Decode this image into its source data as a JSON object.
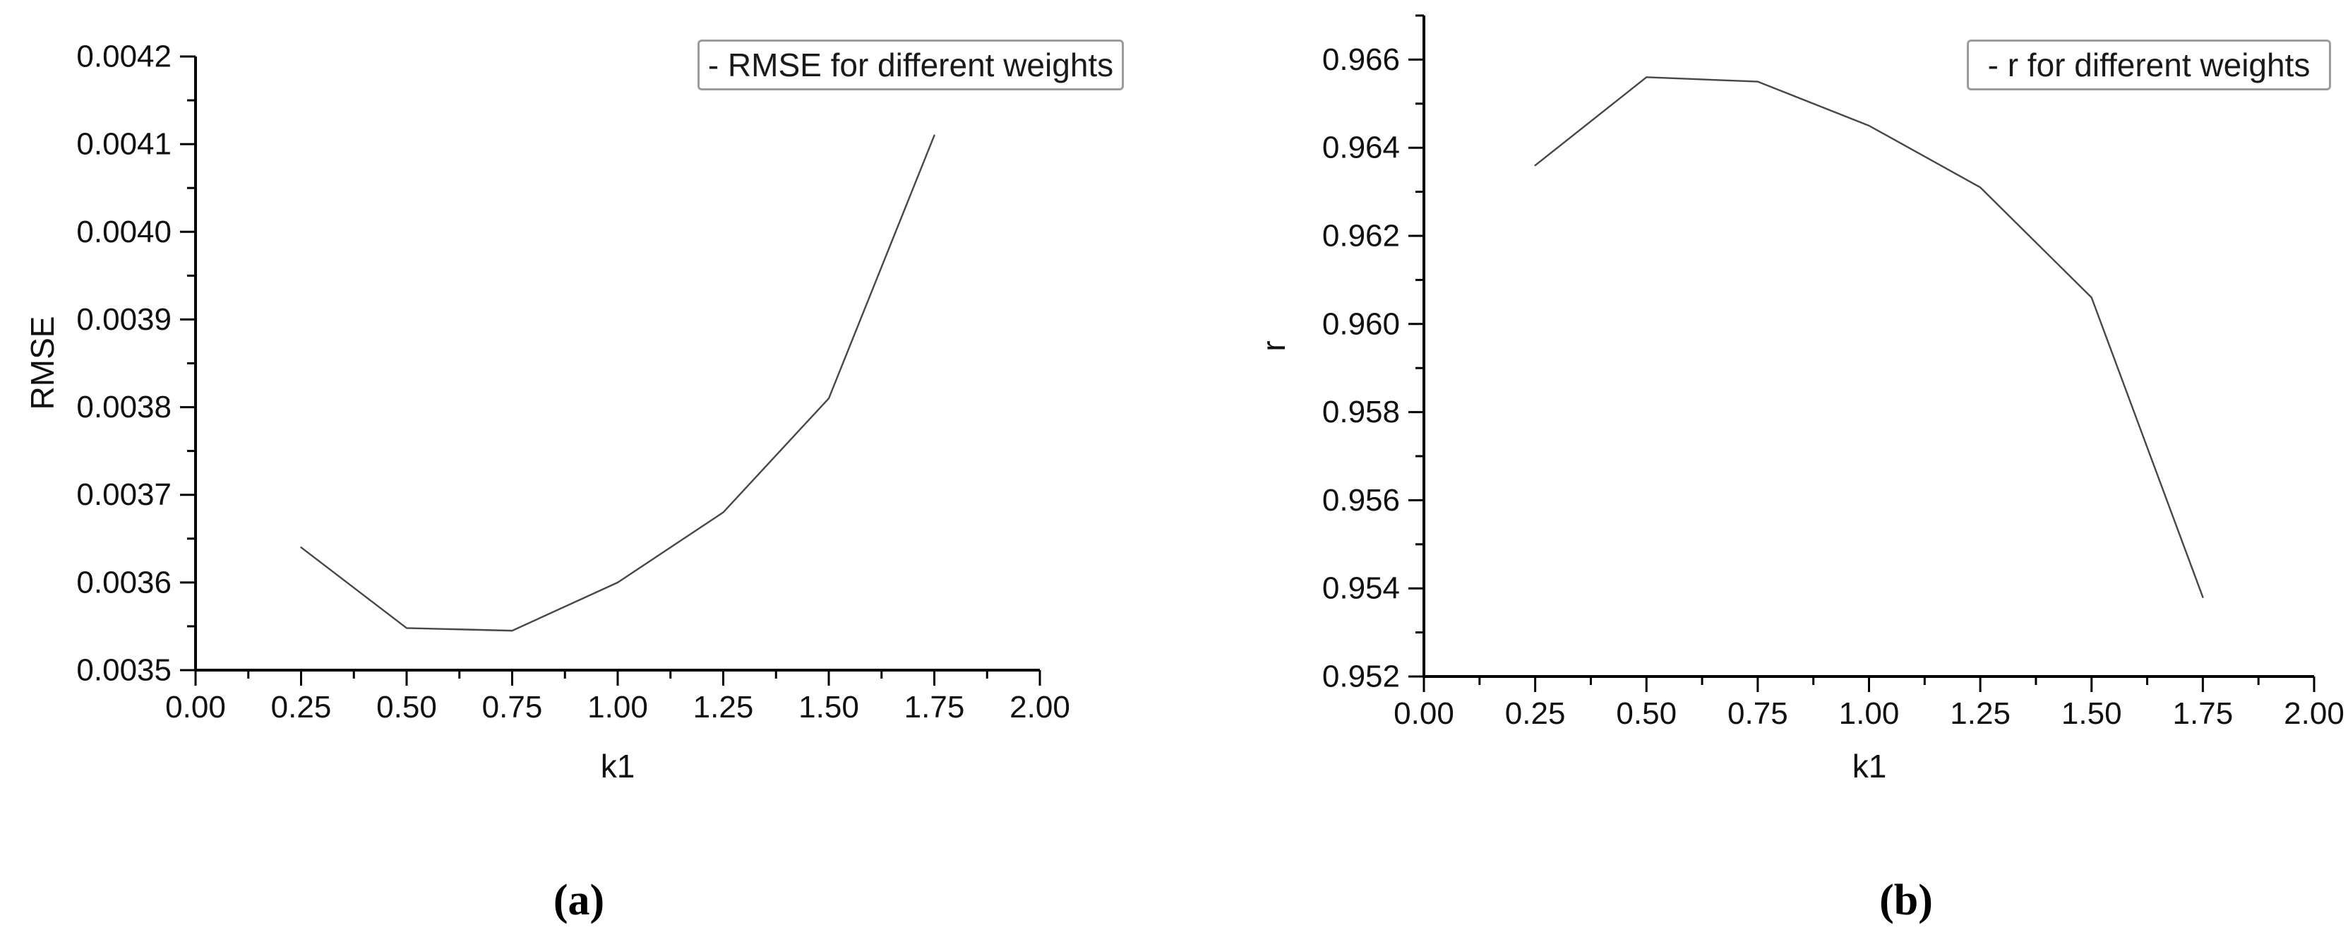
{
  "figure": {
    "background": "#ffffff",
    "captions": {
      "a": "(a)",
      "b": "(b)"
    }
  },
  "chart_data": [
    {
      "id": "a",
      "type": "line",
      "legend": "- RMSE for different weights",
      "xlabel": "k1",
      "ylabel": "RMSE",
      "x": [
        0.25,
        0.5,
        0.75,
        1.0,
        1.25,
        1.5,
        1.75
      ],
      "y": [
        0.00364,
        0.003548,
        0.003545,
        0.0036,
        0.00368,
        0.00381,
        0.00411
      ],
      "xlim": [
        0.0,
        2.0
      ],
      "ylim": [
        0.0035,
        0.0042
      ],
      "x_major_ticks": [
        0.0,
        0.25,
        0.5,
        0.75,
        1.0,
        1.25,
        1.5,
        1.75,
        2.0
      ],
      "x_tick_labels": [
        "0.00",
        "0.25",
        "0.50",
        "0.75",
        "1.00",
        "1.25",
        "1.50",
        "1.75",
        "2.00"
      ],
      "x_minor_ticks": [
        0.125,
        0.375,
        0.625,
        0.875,
        1.125,
        1.375,
        1.625,
        1.875
      ],
      "y_major_ticks": [
        0.0035,
        0.0036,
        0.0037,
        0.0038,
        0.0039,
        0.004,
        0.0041,
        0.0042
      ],
      "y_tick_labels": [
        "0.0035",
        "0.0036",
        "0.0037",
        "0.0038",
        "0.0039",
        "0.0040",
        "0.0041",
        "0.0042"
      ],
      "y_minor_ticks": [
        0.00355,
        0.00365,
        0.00375,
        0.00385,
        0.00395,
        0.00405,
        0.00415
      ],
      "grid": false,
      "legend_position": "top-right",
      "line_color": "#474747",
      "axis_color": "#000000"
    },
    {
      "id": "b",
      "type": "line",
      "legend": "- r for different weights",
      "xlabel": "k1",
      "ylabel": "r",
      "x": [
        0.25,
        0.5,
        0.75,
        1.0,
        1.25,
        1.5,
        1.75
      ],
      "y": [
        0.9636,
        0.9656,
        0.9655,
        0.9645,
        0.9631,
        0.9606,
        0.9538
      ],
      "xlim": [
        0.0,
        2.0
      ],
      "ylim": [
        0.952,
        0.967
      ],
      "x_major_ticks": [
        0.0,
        0.25,
        0.5,
        0.75,
        1.0,
        1.25,
        1.5,
        1.75,
        2.0
      ],
      "x_tick_labels": [
        "0.00",
        "0.25",
        "0.50",
        "0.75",
        "1.00",
        "1.25",
        "1.50",
        "1.75",
        "2.00"
      ],
      "x_minor_ticks": [
        0.125,
        0.375,
        0.625,
        0.875,
        1.125,
        1.375,
        1.625,
        1.875
      ],
      "y_major_ticks": [
        0.952,
        0.954,
        0.956,
        0.958,
        0.96,
        0.962,
        0.964,
        0.966
      ],
      "y_tick_labels": [
        "0.952",
        "0.954",
        "0.956",
        "0.958",
        "0.960",
        "0.962",
        "0.964",
        "0.966"
      ],
      "y_minor_ticks": [
        0.953,
        0.955,
        0.957,
        0.959,
        0.961,
        0.963,
        0.965,
        0.967
      ],
      "grid": false,
      "legend_position": "top-right",
      "line_color": "#474747",
      "axis_color": "#000000"
    }
  ]
}
